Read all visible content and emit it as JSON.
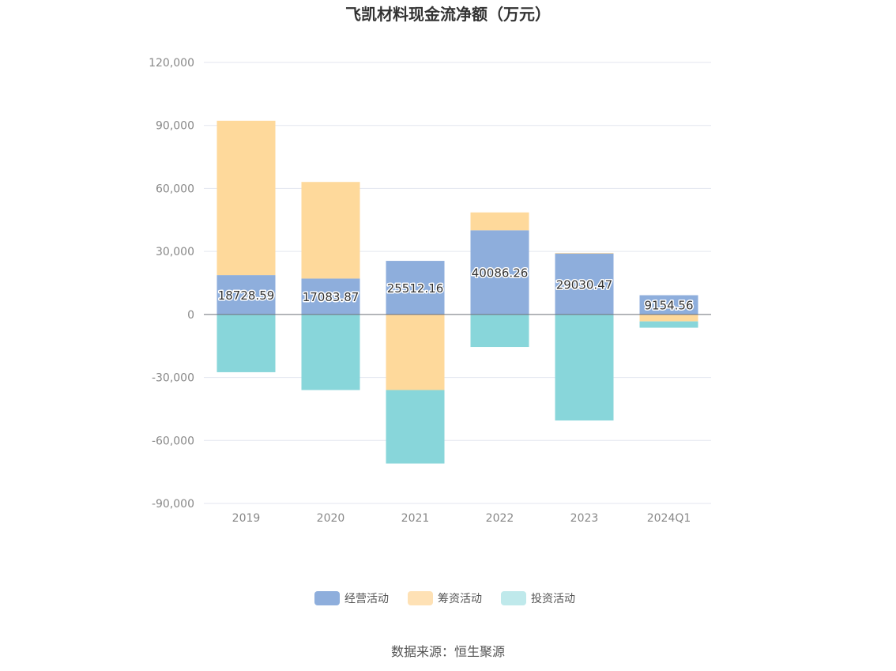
{
  "chart_data": {
    "type": "bar",
    "stacked": true,
    "title": "飞凯材料现金流净额（万元）",
    "categories": [
      "2019",
      "2020",
      "2021",
      "2022",
      "2023",
      "2024Q1"
    ],
    "ylim": [
      -90000,
      120000
    ],
    "yticks": [
      120000,
      90000,
      60000,
      30000,
      0,
      -30000,
      -60000,
      -90000
    ],
    "ytick_labels": [
      "120,000",
      "90,000",
      "60,000",
      "30,000",
      "0",
      "-30,000",
      "-60,000",
      "-90,000"
    ],
    "grid": true,
    "legend_position": "bottom",
    "series": [
      {
        "name": "经营活动",
        "color": "#8eaedc",
        "values": [
          18728.59,
          17083.87,
          25512.16,
          40086.26,
          29030.47,
          9154.56
        ],
        "labels": [
          "18728.59",
          "17083.87",
          "25512.16",
          "40086.26",
          "29030.47",
          "9154.56"
        ]
      },
      {
        "name": "筹资活动",
        "color": "#fed99b",
        "values": [
          73500,
          46000,
          -36000,
          8500,
          300,
          -3300
        ]
      },
      {
        "name": "投资活动",
        "color": "#88d6da",
        "values": [
          -27500,
          -36000,
          -35000,
          -15500,
          -50500,
          -3000
        ]
      }
    ],
    "legend_colors": [
      "#8eaedc",
      "#fee1b5",
      "#bfe9eb"
    ],
    "source": "数据来源：恒生聚源"
  }
}
